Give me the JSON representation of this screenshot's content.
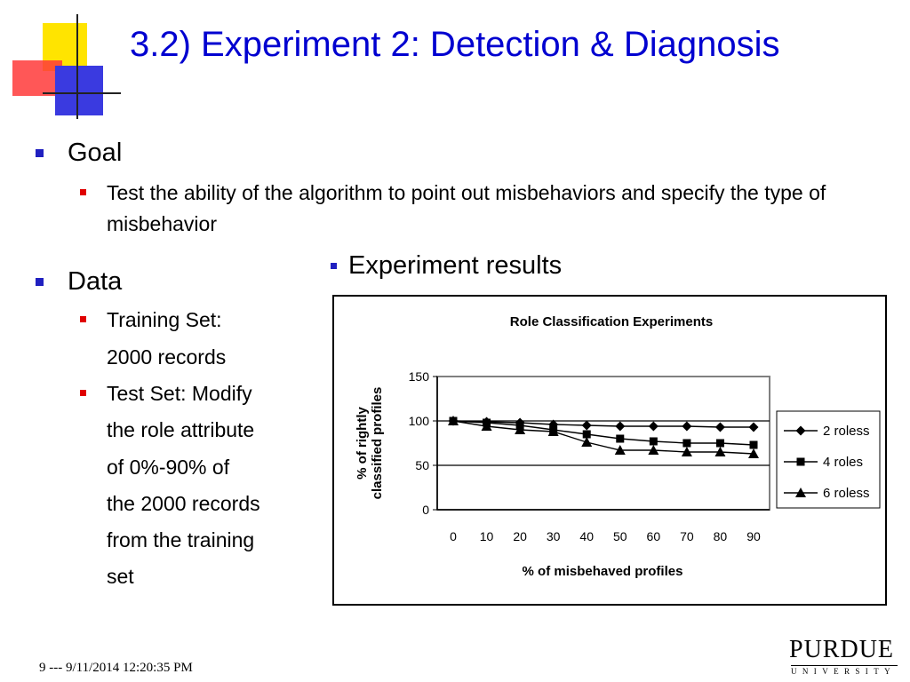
{
  "slide": {
    "title": "3.2) Experiment 2: Detection & Diagnosis",
    "goal": {
      "label": "Goal",
      "text": "Test the ability of the algorithm to point out misbehaviors and specify the type of misbehavior"
    },
    "data": {
      "label": "Data",
      "training_line1": "Training Set:",
      "training_line2": "2000 records",
      "test_lines": [
        "Test Set: Modify",
        "the role attribute",
        "of 0%-90% of",
        "the 2000 records",
        "from the training",
        "set"
      ]
    },
    "results_heading": "Experiment results",
    "footer": "9 --- 9/11/2014 12:20:35 PM",
    "logo": {
      "main": "PURDUE",
      "sub": "UNIVERSITY"
    }
  },
  "chart_data": {
    "type": "line",
    "title": "Role Classification Experiments",
    "xlabel": "% of misbehaved profiles",
    "ylabel_lines": [
      "% of rightly",
      "classified profiles"
    ],
    "categories": [
      "0",
      "10",
      "20",
      "30",
      "40",
      "50",
      "60",
      "70",
      "80",
      "90"
    ],
    "x": [
      0,
      10,
      20,
      30,
      40,
      50,
      60,
      70,
      80,
      90
    ],
    "ylim": [
      0,
      150
    ],
    "yticks": [
      0,
      50,
      100,
      150
    ],
    "grid": "horizontal",
    "legend_position": "right",
    "series": [
      {
        "name": "2 roless",
        "marker": "diamond",
        "values": [
          100,
          99,
          98,
          96,
          95,
          94,
          94,
          94,
          93,
          93
        ]
      },
      {
        "name": "4 roles",
        "marker": "square",
        "values": [
          100,
          98,
          95,
          90,
          85,
          80,
          77,
          75,
          75,
          73
        ]
      },
      {
        "name": "6 roless",
        "marker": "triangle",
        "values": [
          100,
          94,
          90,
          88,
          76,
          67,
          67,
          65,
          65,
          63
        ]
      }
    ]
  }
}
